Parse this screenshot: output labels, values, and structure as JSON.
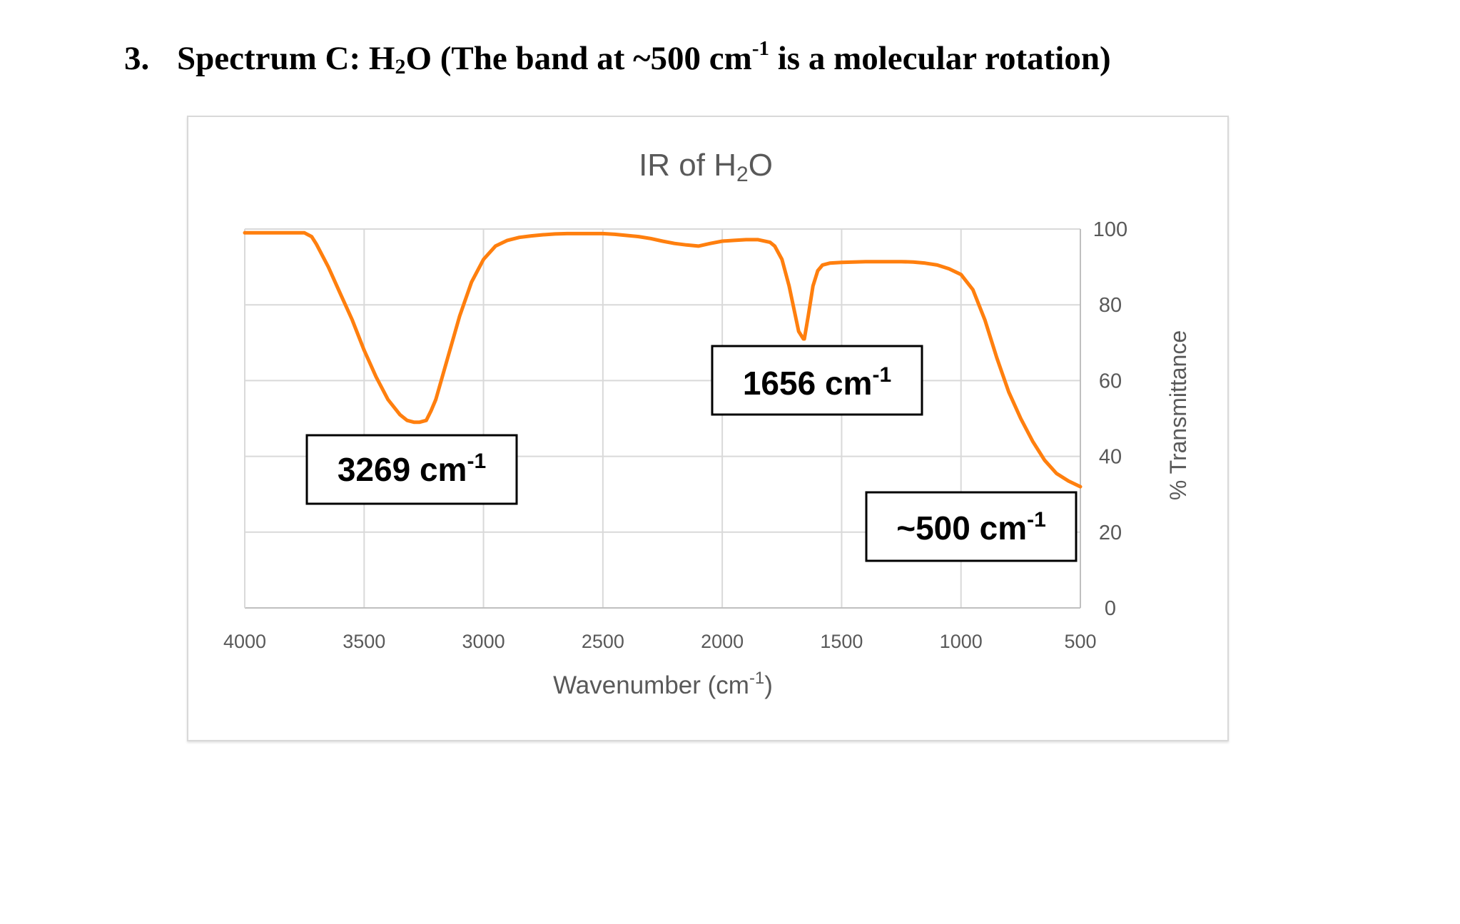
{
  "heading": {
    "number": "3.",
    "text_before": "Spectrum C: H",
    "text_sub": "2",
    "text_mid": "O (The band at ~500 cm",
    "text_sup": "-1",
    "text_after": " is a molecular rotation)"
  },
  "chart_data": {
    "type": "line",
    "title_parts": [
      "IR of H",
      "2",
      "O"
    ],
    "xlabel_parts": [
      "Wavenumber (cm",
      "-1",
      ")"
    ],
    "ylabel": "% Transmittance",
    "xlim": [
      4000,
      500
    ],
    "ylim": [
      0,
      100
    ],
    "x_reversed": true,
    "y_axis_position": "right",
    "grid": true,
    "x_ticks": [
      4000,
      3500,
      3000,
      2500,
      2000,
      1500,
      1000,
      500
    ],
    "y_ticks": [
      0,
      20,
      40,
      60,
      80,
      100
    ],
    "line_color": "#ff7f0e",
    "series": [
      {
        "x": [
          4000,
          3950,
          3900,
          3850,
          3800,
          3750,
          3720,
          3700,
          3650,
          3600,
          3550,
          3500,
          3450,
          3400,
          3350,
          3320,
          3290,
          3269,
          3240,
          3220,
          3200,
          3150,
          3100,
          3050,
          3000,
          2950,
          2900,
          2850,
          2800,
          2750,
          2700,
          2650,
          2600,
          2550,
          2500,
          2450,
          2400,
          2350,
          2300,
          2250,
          2200,
          2150,
          2100,
          2050,
          2000,
          1950,
          1900,
          1850,
          1800,
          1780,
          1750,
          1720,
          1700,
          1680,
          1660,
          1656,
          1640,
          1620,
          1600,
          1580,
          1550,
          1500,
          1450,
          1400,
          1350,
          1300,
          1250,
          1200,
          1150,
          1100,
          1050,
          1000,
          950,
          900,
          850,
          800,
          750,
          700,
          650,
          600,
          550,
          500
        ],
        "y": [
          99,
          99,
          99,
          99,
          99,
          99,
          98,
          96,
          90,
          83,
          76,
          68,
          61,
          55,
          51,
          49.5,
          49,
          49,
          49.5,
          52,
          55,
          66,
          77,
          86,
          92,
          95.5,
          97,
          97.8,
          98.2,
          98.5,
          98.7,
          98.8,
          98.8,
          98.8,
          98.8,
          98.6,
          98.3,
          98,
          97.5,
          96.8,
          96.2,
          95.8,
          95.5,
          96.2,
          96.8,
          97,
          97.2,
          97.2,
          96.5,
          95.5,
          92,
          85,
          79,
          73,
          71,
          71,
          77,
          85,
          89,
          90.5,
          91,
          91.2,
          91.3,
          91.4,
          91.4,
          91.4,
          91.4,
          91.3,
          91,
          90.5,
          89.5,
          88,
          84,
          76,
          66,
          57,
          50,
          44,
          39,
          35.5,
          33.5,
          32
        ]
      }
    ],
    "annotations": [
      {
        "value": "3269",
        "unit": "cm",
        "sup": "-1"
      },
      {
        "value": "1656",
        "unit": "cm",
        "sup": "-1"
      },
      {
        "value": "~500",
        "unit": "cm",
        "sup": "-1"
      }
    ]
  }
}
